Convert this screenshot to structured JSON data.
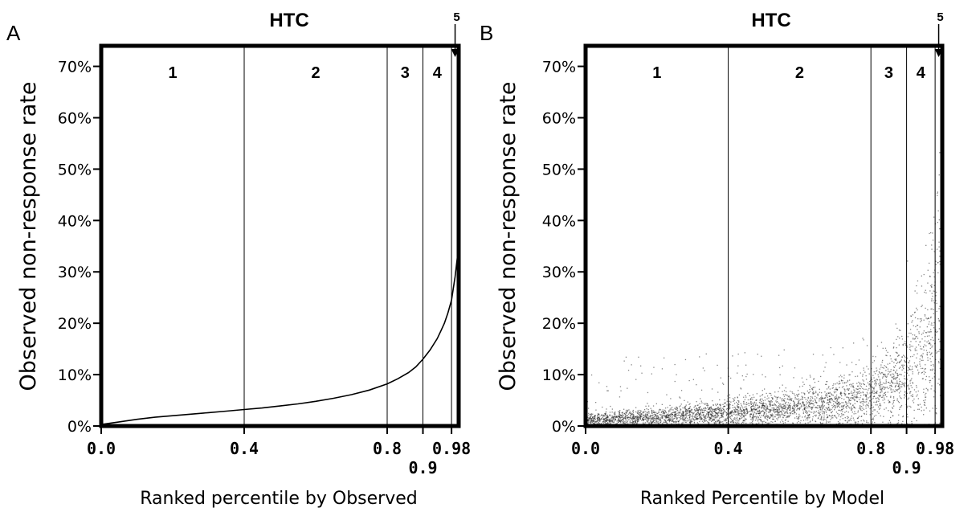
{
  "chart_data": [
    {
      "panel": "A",
      "type": "line",
      "title": "HTC",
      "xlabel": "Ranked percentile by Observed",
      "ylabel": "Observed non-response rate",
      "xlim": [
        0,
        1
      ],
      "ylim": [
        0,
        0.74
      ],
      "x_ticks": [
        {
          "value": 0.0,
          "label": "0.0",
          "row": 0
        },
        {
          "value": 0.4,
          "label": "0.4",
          "row": 0
        },
        {
          "value": 0.8,
          "label": "0.8",
          "row": 0
        },
        {
          "value": 0.9,
          "label": "0.9",
          "row": 1
        },
        {
          "value": 0.98,
          "label": "0.98",
          "row": 0
        }
      ],
      "y_ticks": [
        {
          "value": 0.0,
          "label": "0%"
        },
        {
          "value": 0.1,
          "label": "10%"
        },
        {
          "value": 0.2,
          "label": "20%"
        },
        {
          "value": 0.3,
          "label": "30%"
        },
        {
          "value": 0.4,
          "label": "40%"
        },
        {
          "value": 0.5,
          "label": "50%"
        },
        {
          "value": 0.6,
          "label": "60%"
        },
        {
          "value": 0.7,
          "label": "70%"
        }
      ],
      "regions": [
        {
          "label": "1",
          "x": 0.2
        },
        {
          "label": "2",
          "x": 0.6
        },
        {
          "label": "3",
          "x": 0.85
        },
        {
          "label": "4",
          "x": 0.94
        }
      ],
      "region_boundaries": [
        0.4,
        0.8,
        0.9,
        0.98
      ],
      "arrow_label": {
        "label": "5",
        "x": 0.99
      },
      "series": [
        {
          "x": [
            0.0,
            0.05,
            0.1,
            0.15,
            0.2,
            0.25,
            0.3,
            0.35,
            0.4,
            0.45,
            0.5,
            0.55,
            0.6,
            0.65,
            0.7,
            0.75,
            0.8,
            0.83,
            0.86,
            0.88,
            0.9,
            0.92,
            0.94,
            0.95,
            0.96,
            0.97,
            0.98,
            0.99,
            1.0
          ],
          "y": [
            0.003,
            0.008,
            0.013,
            0.017,
            0.02,
            0.023,
            0.026,
            0.029,
            0.032,
            0.035,
            0.039,
            0.043,
            0.048,
            0.054,
            0.061,
            0.07,
            0.082,
            0.092,
            0.104,
            0.115,
            0.13,
            0.148,
            0.17,
            0.185,
            0.2,
            0.22,
            0.245,
            0.29,
            0.35
          ]
        }
      ]
    },
    {
      "panel": "B",
      "type": "scatter",
      "title": "HTC",
      "xlabel": "Ranked Percentile by Model",
      "ylabel": "Observed non-response rate",
      "xlim": [
        0,
        1
      ],
      "ylim": [
        0,
        0.74
      ],
      "x_ticks": [
        {
          "value": 0.0,
          "label": "0.0",
          "row": 0
        },
        {
          "value": 0.4,
          "label": "0.4",
          "row": 0
        },
        {
          "value": 0.8,
          "label": "0.8",
          "row": 0
        },
        {
          "value": 0.9,
          "label": "0.9",
          "row": 1
        },
        {
          "value": 0.98,
          "label": "0.98",
          "row": 0
        }
      ],
      "y_ticks": [
        {
          "value": 0.0,
          "label": "0%"
        },
        {
          "value": 0.1,
          "label": "10%"
        },
        {
          "value": 0.2,
          "label": "20%"
        },
        {
          "value": 0.3,
          "label": "30%"
        },
        {
          "value": 0.4,
          "label": "40%"
        },
        {
          "value": 0.5,
          "label": "50%"
        },
        {
          "value": 0.6,
          "label": "60%"
        },
        {
          "value": 0.7,
          "label": "70%"
        }
      ],
      "regions": [
        {
          "label": "1",
          "x": 0.2
        },
        {
          "label": "2",
          "x": 0.6
        },
        {
          "label": "3",
          "x": 0.85
        },
        {
          "label": "4",
          "x": 0.94
        }
      ],
      "region_boundaries": [
        0.4,
        0.8,
        0.9,
        0.98
      ],
      "arrow_label": {
        "label": "5",
        "x": 0.99
      },
      "trend": {
        "x": [
          0.0,
          0.1,
          0.2,
          0.3,
          0.4,
          0.5,
          0.6,
          0.7,
          0.8,
          0.85,
          0.9,
          0.95,
          0.98,
          1.0
        ],
        "y": [
          0.012,
          0.015,
          0.018,
          0.021,
          0.025,
          0.029,
          0.035,
          0.045,
          0.06,
          0.075,
          0.095,
          0.135,
          0.2,
          0.27
        ]
      },
      "point_count": 4000
    }
  ]
}
